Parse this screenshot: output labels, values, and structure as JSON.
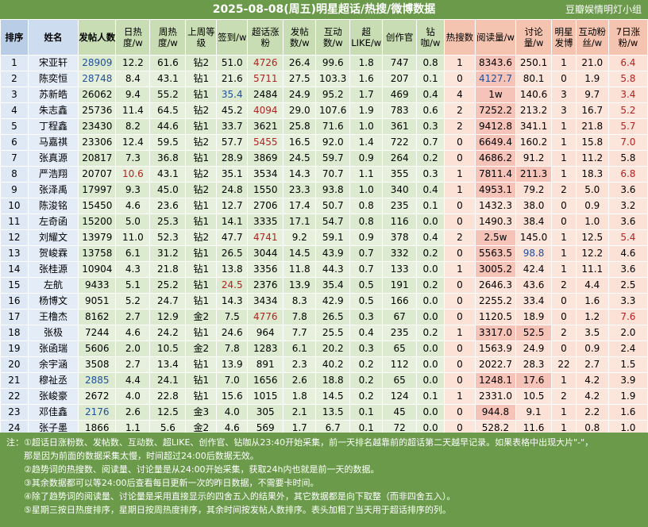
{
  "title": "2025-08-08(周五)明星超话/热搜/微博数据",
  "group": "豆瓣娱情明灯小组",
  "headers": [
    "排序",
    "姓名",
    "发帖人数",
    "日热度/w",
    "周热度/w",
    "上周等级",
    "签到/w",
    "超话涨粉",
    "发帖数/w",
    "互动数/w",
    "超LIKE/w",
    "创作官",
    "钻咖/w",
    "热搜数",
    "阅读量/w",
    "讨论量/w",
    "明星发博",
    "互动粉丝/w",
    "7日涨粉/w"
  ],
  "rows": [
    [
      "1",
      "宋亚轩",
      "28909",
      "12.2",
      "61.6",
      "钻2",
      "51.0",
      "4726",
      "26.4",
      "99.6",
      "1.8",
      "747",
      "0.8",
      "1",
      "8343.6",
      "250.1",
      "1",
      "21.0",
      "6.4"
    ],
    [
      "2",
      "陈奕恒",
      "28748",
      "8.4",
      "43.1",
      "钻1",
      "21.6",
      "5711",
      "27.5",
      "103.3",
      "1.6",
      "207",
      "0.1",
      "0",
      "4127.7",
      "80.1",
      "0",
      "1.9",
      "5.8"
    ],
    [
      "3",
      "苏新皓",
      "26062",
      "9.4",
      "55.2",
      "钻1",
      "35.4",
      "2484",
      "24.9",
      "95.2",
      "1.7",
      "469",
      "0.4",
      "4",
      "1w",
      "140.6",
      "3",
      "9.7",
      "3.4"
    ],
    [
      "4",
      "朱志鑫",
      "25736",
      "11.4",
      "64.5",
      "钻2",
      "45.2",
      "4094",
      "29.0",
      "107.6",
      "1.9",
      "783",
      "0.6",
      "2",
      "7252.2",
      "213.2",
      "3",
      "16.7",
      "5.2"
    ],
    [
      "5",
      "丁程鑫",
      "23430",
      "8.2",
      "44.6",
      "钻1",
      "33.7",
      "3621",
      "25.8",
      "71.6",
      "1.0",
      "361",
      "0.3",
      "2",
      "9412.8",
      "341.1",
      "1",
      "21.8",
      "5.7"
    ],
    [
      "6",
      "马嘉祺",
      "23306",
      "12.4",
      "59.5",
      "钻2",
      "57.7",
      "5455",
      "16.5",
      "92.0",
      "1.4",
      "722",
      "0.7",
      "0",
      "6649.4",
      "160.2",
      "1",
      "15.8",
      "7.0"
    ],
    [
      "7",
      "张真源",
      "20817",
      "7.3",
      "36.8",
      "钻1",
      "28.9",
      "3869",
      "24.5",
      "59.7",
      "0.9",
      "264",
      "0.2",
      "0",
      "4686.2",
      "91.2",
      "1",
      "11.2",
      "5.8"
    ],
    [
      "8",
      "严浩翔",
      "20707",
      "10.6",
      "43.1",
      "钻2",
      "35.1",
      "3534",
      "14.3",
      "70.7",
      "1.1",
      "355",
      "0.3",
      "1",
      "7811.4",
      "211.3",
      "1",
      "18.3",
      "6.8"
    ],
    [
      "9",
      "张泽禹",
      "17997",
      "9.3",
      "45.0",
      "钻2",
      "24.8",
      "1550",
      "23.3",
      "93.8",
      "1.0",
      "340",
      "0.4",
      "1",
      "4953.1",
      "79.2",
      "2",
      "5.0",
      "3.6"
    ],
    [
      "10",
      "陈浚铭",
      "15450",
      "4.6",
      "23.6",
      "钻1",
      "12.7",
      "2706",
      "17.4",
      "50.7",
      "0.8",
      "235",
      "0.1",
      "0",
      "1432.3",
      "38.0",
      "0",
      "0.9",
      "3.2"
    ],
    [
      "11",
      "左奇函",
      "15200",
      "5.0",
      "25.3",
      "钻1",
      "14.1",
      "3335",
      "17.1",
      "54.7",
      "0.8",
      "116",
      "0.0",
      "0",
      "1490.3",
      "38.4",
      "0",
      "1.0",
      "3.6"
    ],
    [
      "12",
      "刘耀文",
      "13979",
      "11.0",
      "52.3",
      "钻2",
      "47.7",
      "4741",
      "9.2",
      "59.1",
      "0.9",
      "378",
      "0.4",
      "2",
      "2.5w",
      "145.0",
      "1",
      "12.5",
      "5.4"
    ],
    [
      "13",
      "贺峻霖",
      "13758",
      "6.1",
      "31.2",
      "钻1",
      "26.5",
      "3044",
      "14.5",
      "43.9",
      "0.7",
      "332",
      "0.2",
      "0",
      "5563.5",
      "98.8",
      "1",
      "12.2",
      "4.6"
    ],
    [
      "14",
      "张桂源",
      "10904",
      "4.3",
      "21.8",
      "钻1",
      "13.8",
      "3356",
      "11.8",
      "44.3",
      "0.7",
      "133",
      "0.0",
      "1",
      "3005.2",
      "42.4",
      "1",
      "11.1",
      "3.6"
    ],
    [
      "15",
      "左航",
      "9433",
      "5.1",
      "25.2",
      "钻1",
      "24.5",
      "2376",
      "13.9",
      "35.4",
      "0.5",
      "191",
      "0.2",
      "0",
      "2646.3",
      "43.6",
      "2",
      "4.4",
      "2.5"
    ],
    [
      "16",
      "杨博文",
      "9051",
      "5.2",
      "24.7",
      "钻1",
      "14.3",
      "3434",
      "8.3",
      "42.9",
      "0.5",
      "166",
      "0.0",
      "0",
      "2255.2",
      "33.4",
      "0",
      "1.6",
      "3.3"
    ],
    [
      "17",
      "王橹杰",
      "8162",
      "2.7",
      "12.9",
      "金2",
      "7.5",
      "4776",
      "7.8",
      "26.5",
      "0.3",
      "67",
      "0.0",
      "0",
      "1120.5",
      "18.9",
      "0",
      "1.2",
      "7.6"
    ],
    [
      "18",
      "张极",
      "7244",
      "4.6",
      "24.2",
      "钻1",
      "24.6",
      "964",
      "7.7",
      "25.5",
      "0.4",
      "235",
      "0.2",
      "1",
      "3317.0",
      "52.5",
      "2",
      "3.5",
      "2.0"
    ],
    [
      "19",
      "张函瑞",
      "5606",
      "2.0",
      "10.5",
      "金2",
      "7.8",
      "1283",
      "6.1",
      "20.2",
      "0.3",
      "65",
      "0.0",
      "0",
      "1563.9",
      "24.9",
      "0",
      "0.9",
      "2.4"
    ],
    [
      "20",
      "余宇涵",
      "3508",
      "2.7",
      "13.4",
      "钻1",
      "13.9",
      "891",
      "2.3",
      "40.2",
      "0.2",
      "112",
      "0.0",
      "0",
      "2022.7",
      "28.3",
      "22",
      "2.7",
      "1.5"
    ],
    [
      "21",
      "穆祉丞",
      "2885",
      "4.4",
      "24.1",
      "钻1",
      "7.0",
      "1656",
      "2.6",
      "18.8",
      "0.2",
      "65",
      "0.0",
      "0",
      "1248.1",
      "17.6",
      "1",
      "4.2",
      "3.9"
    ],
    [
      "22",
      "张峻豪",
      "2672",
      "4.0",
      "22.8",
      "钻1",
      "15.6",
      "1015",
      "1.8",
      "14.5",
      "0.2",
      "124",
      "0.1",
      "1",
      "2331.0",
      "10.5",
      "2",
      "4.2",
      "1.9"
    ],
    [
      "23",
      "邓佳鑫",
      "2176",
      "2.6",
      "12.5",
      "金3",
      "4.0",
      "305",
      "2.1",
      "13.5",
      "0.1",
      "45",
      "0.0",
      "0",
      "944.8",
      "9.1",
      "1",
      "2.2",
      "1.6"
    ],
    [
      "24",
      "张子墨",
      "1866",
      "1.1",
      "5.6",
      "金2",
      "4.6",
      "569",
      "1.7",
      "6.7",
      "0.1",
      "72",
      "0.0",
      "0",
      "528.2",
      "11.6",
      "1",
      "0.8",
      "1.0"
    ]
  ],
  "notes": [
    "注：①超话日涨粉数、发帖数、互动数、超LIKE、创作官、钻咖从23:40开始采集，前一天排名越靠前的超话第二天越早记录。如果表格中出现大片\"-\"，",
    "那是因为前面的数据采集太慢，时间超过24:00后数据无效。",
    "②趋势词的热搜数、阅读量、讨论量是从24:00开始采集，获取24h内也就是前一天的数据。",
    "③其余数据都可以等24:00后查看每日更新一次的昨日数据，不需要卡时间。",
    "④除了趋势词的阅读量、讨论量是采用直接显示的四舍五入的结果外，其它数据都是向下取整（而非四舍五入）。",
    "⑤星期三按日热度排序，星期日按周热度排序，其余时间按发帖人数排序。表头加粗了当天用于超话排序的列。"
  ],
  "colors": {
    "title_bg": "#6a9a4a",
    "rank_header": "#b9cde6",
    "green_header": "#c8ddb3",
    "pink_header": "#f4c4b0",
    "red_text": "#b22222",
    "blue_text": "#1f4e9a"
  },
  "highlights": {
    "red": [
      "0-7",
      "1-7",
      "3-7",
      "5-7",
      "7-3",
      "11-7",
      "16-7",
      "0-18",
      "1-18",
      "2-18",
      "3-18",
      "4-18",
      "5-18",
      "7-18",
      "11-18",
      "16-18",
      "14-6"
    ],
    "blue": [
      "0-2",
      "1-2",
      "2-6",
      "20-2",
      "22-2",
      "12-15",
      "1-14"
    ],
    "red_bg_read": [
      "0-14",
      "1-14",
      "2-14",
      "3-14",
      "4-14",
      "5-14",
      "6-14",
      "7-14",
      "8-14",
      "11-14",
      "12-14",
      "13-14",
      "17-14",
      "20-14",
      "22-14"
    ],
    "red_bg_disc": [
      "7-15",
      "17-15",
      "20-15"
    ]
  }
}
